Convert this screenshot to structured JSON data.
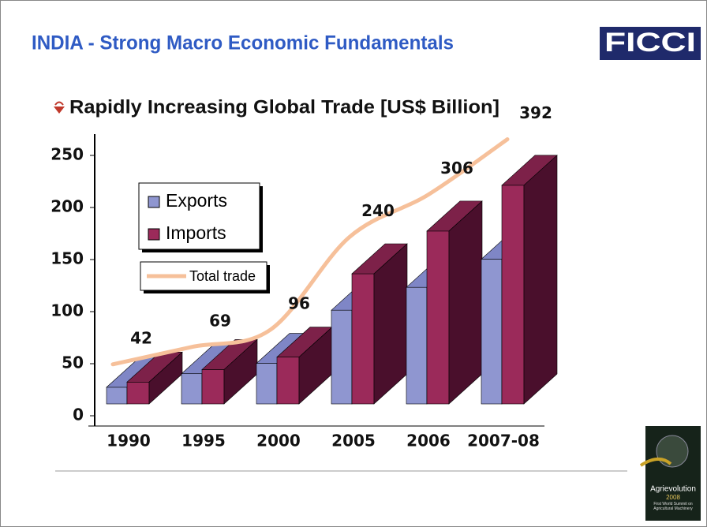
{
  "header": {
    "title": "INDIA - Strong Macro Economic Fundamentals",
    "logo": "FICCI"
  },
  "chart_data": {
    "type": "bar3d",
    "title": "Rapidly Increasing Global Trade [US$ Billion]",
    "categories": [
      "1990",
      "1995",
      "2000",
      "2005",
      "2006",
      "2007-08"
    ],
    "series": [
      {
        "name": "Exports",
        "color": "#8f96d0",
        "values": [
          16,
          29,
          39,
          90,
          112,
          139
        ]
      },
      {
        "name": "Imports",
        "color": "#9b2a5a",
        "values": [
          21,
          33,
          45,
          125,
          166,
          210
        ]
      },
      {
        "name": "Total trade",
        "color": "#f6c09a",
        "axis": "y2",
        "values": [
          42,
          69,
          96,
          240,
          306,
          392
        ]
      }
    ],
    "ylim": [
      0,
      250
    ],
    "yticks": [
      0,
      50,
      100,
      150,
      200,
      250
    ],
    "y2lim": [
      0,
      400
    ]
  },
  "footer_logo": {
    "name": "Agrievolution",
    "year": "2008",
    "tagline": "First World Summit on Agricultural Machinery"
  }
}
